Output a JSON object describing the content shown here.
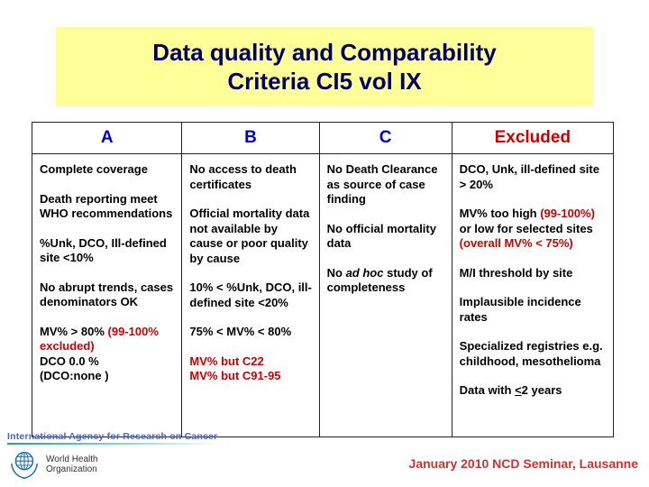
{
  "colors": {
    "banner_bg": "#ffff99",
    "title_text": "#000066",
    "header_blue": "#0000cc",
    "header_red": "#cc0000",
    "accent_red": "#cc0000",
    "body_text": "#000000",
    "seminar_note_red": "#cc3333",
    "iarc_blue": "#4466cc",
    "who_blue": "#1a6faf"
  },
  "title": {
    "line1": "Data quality and Comparability",
    "line2": "Criteria CI5 vol IX"
  },
  "table": {
    "headers": [
      {
        "label": "A",
        "color": "#0000cc"
      },
      {
        "label": "B",
        "color": "#0000cc"
      },
      {
        "label": "C",
        "color": "#0000cc"
      },
      {
        "label": "Excluded",
        "color": "#cc0000"
      }
    ],
    "columns": [
      {
        "paragraphs": [
          [
            {
              "t": "Complete coverage"
            }
          ],
          [
            {
              "t": "Death reporting meet WHO recommendations"
            }
          ],
          [
            {
              "t": "%Unk, DCO, Ill-defined site <10%"
            }
          ],
          [
            {
              "t": "No abrupt trends, cases denominators OK"
            }
          ],
          [
            {
              "t": "MV% > 80% "
            },
            {
              "t": "(99-100% excluded)",
              "c": "red"
            },
            {
              "br": true
            },
            {
              "t": "DCO 0.0 %"
            },
            {
              "br": true
            },
            {
              "t": " (DCO:none )"
            }
          ]
        ]
      },
      {
        "paragraphs": [
          [
            {
              "t": "No access to death certificates"
            }
          ],
          [
            {
              "t": "Official mortality data not available by cause or poor quality by cause"
            }
          ],
          [
            {
              "t": "10% < %Unk, DCO, ill-defined site <20%"
            }
          ],
          [
            {
              "t": "75% < MV% < 80%"
            }
          ],
          [
            {
              "t": "MV% but C22",
              "c": "red"
            },
            {
              "br": true
            },
            {
              "t": "MV% but C91-95",
              "c": "red"
            }
          ]
        ]
      },
      {
        "paragraphs": [
          [
            {
              "t": "No Death Clearance as source of case finding"
            }
          ],
          [
            {
              "t": "No official mortality data"
            }
          ],
          [
            {
              "t": "No "
            },
            {
              "t": "ad hoc",
              "c": "italic"
            },
            {
              "t": " study of completeness"
            }
          ]
        ]
      },
      {
        "paragraphs": [
          [
            {
              "t": "DCO, Unk, ill-defined site > 20%"
            }
          ],
          [
            {
              "t": " MV% too high "
            },
            {
              "t": "(99-100%)",
              "c": "red"
            },
            {
              "t": " or low for selected sites "
            },
            {
              "t": "(overall MV% < 75%)",
              "c": "red"
            }
          ],
          [
            {
              "t": "M/I threshold by site"
            }
          ],
          [
            {
              "t": "Implausible incidence rates"
            }
          ],
          [
            {
              "t": "Specialized registries e.g. childhood, mesothelioma"
            }
          ],
          [
            {
              "t": "Data with "
            },
            {
              "t": "<",
              "c": "underline"
            },
            {
              "t": "2 years"
            }
          ]
        ]
      }
    ]
  },
  "footer": {
    "iarc_label": "International Agency for Research on Cancer",
    "who_line1": "World Health",
    "who_line2": "Organization",
    "seminar_note": "January 2010 NCD Seminar, Lausanne"
  }
}
